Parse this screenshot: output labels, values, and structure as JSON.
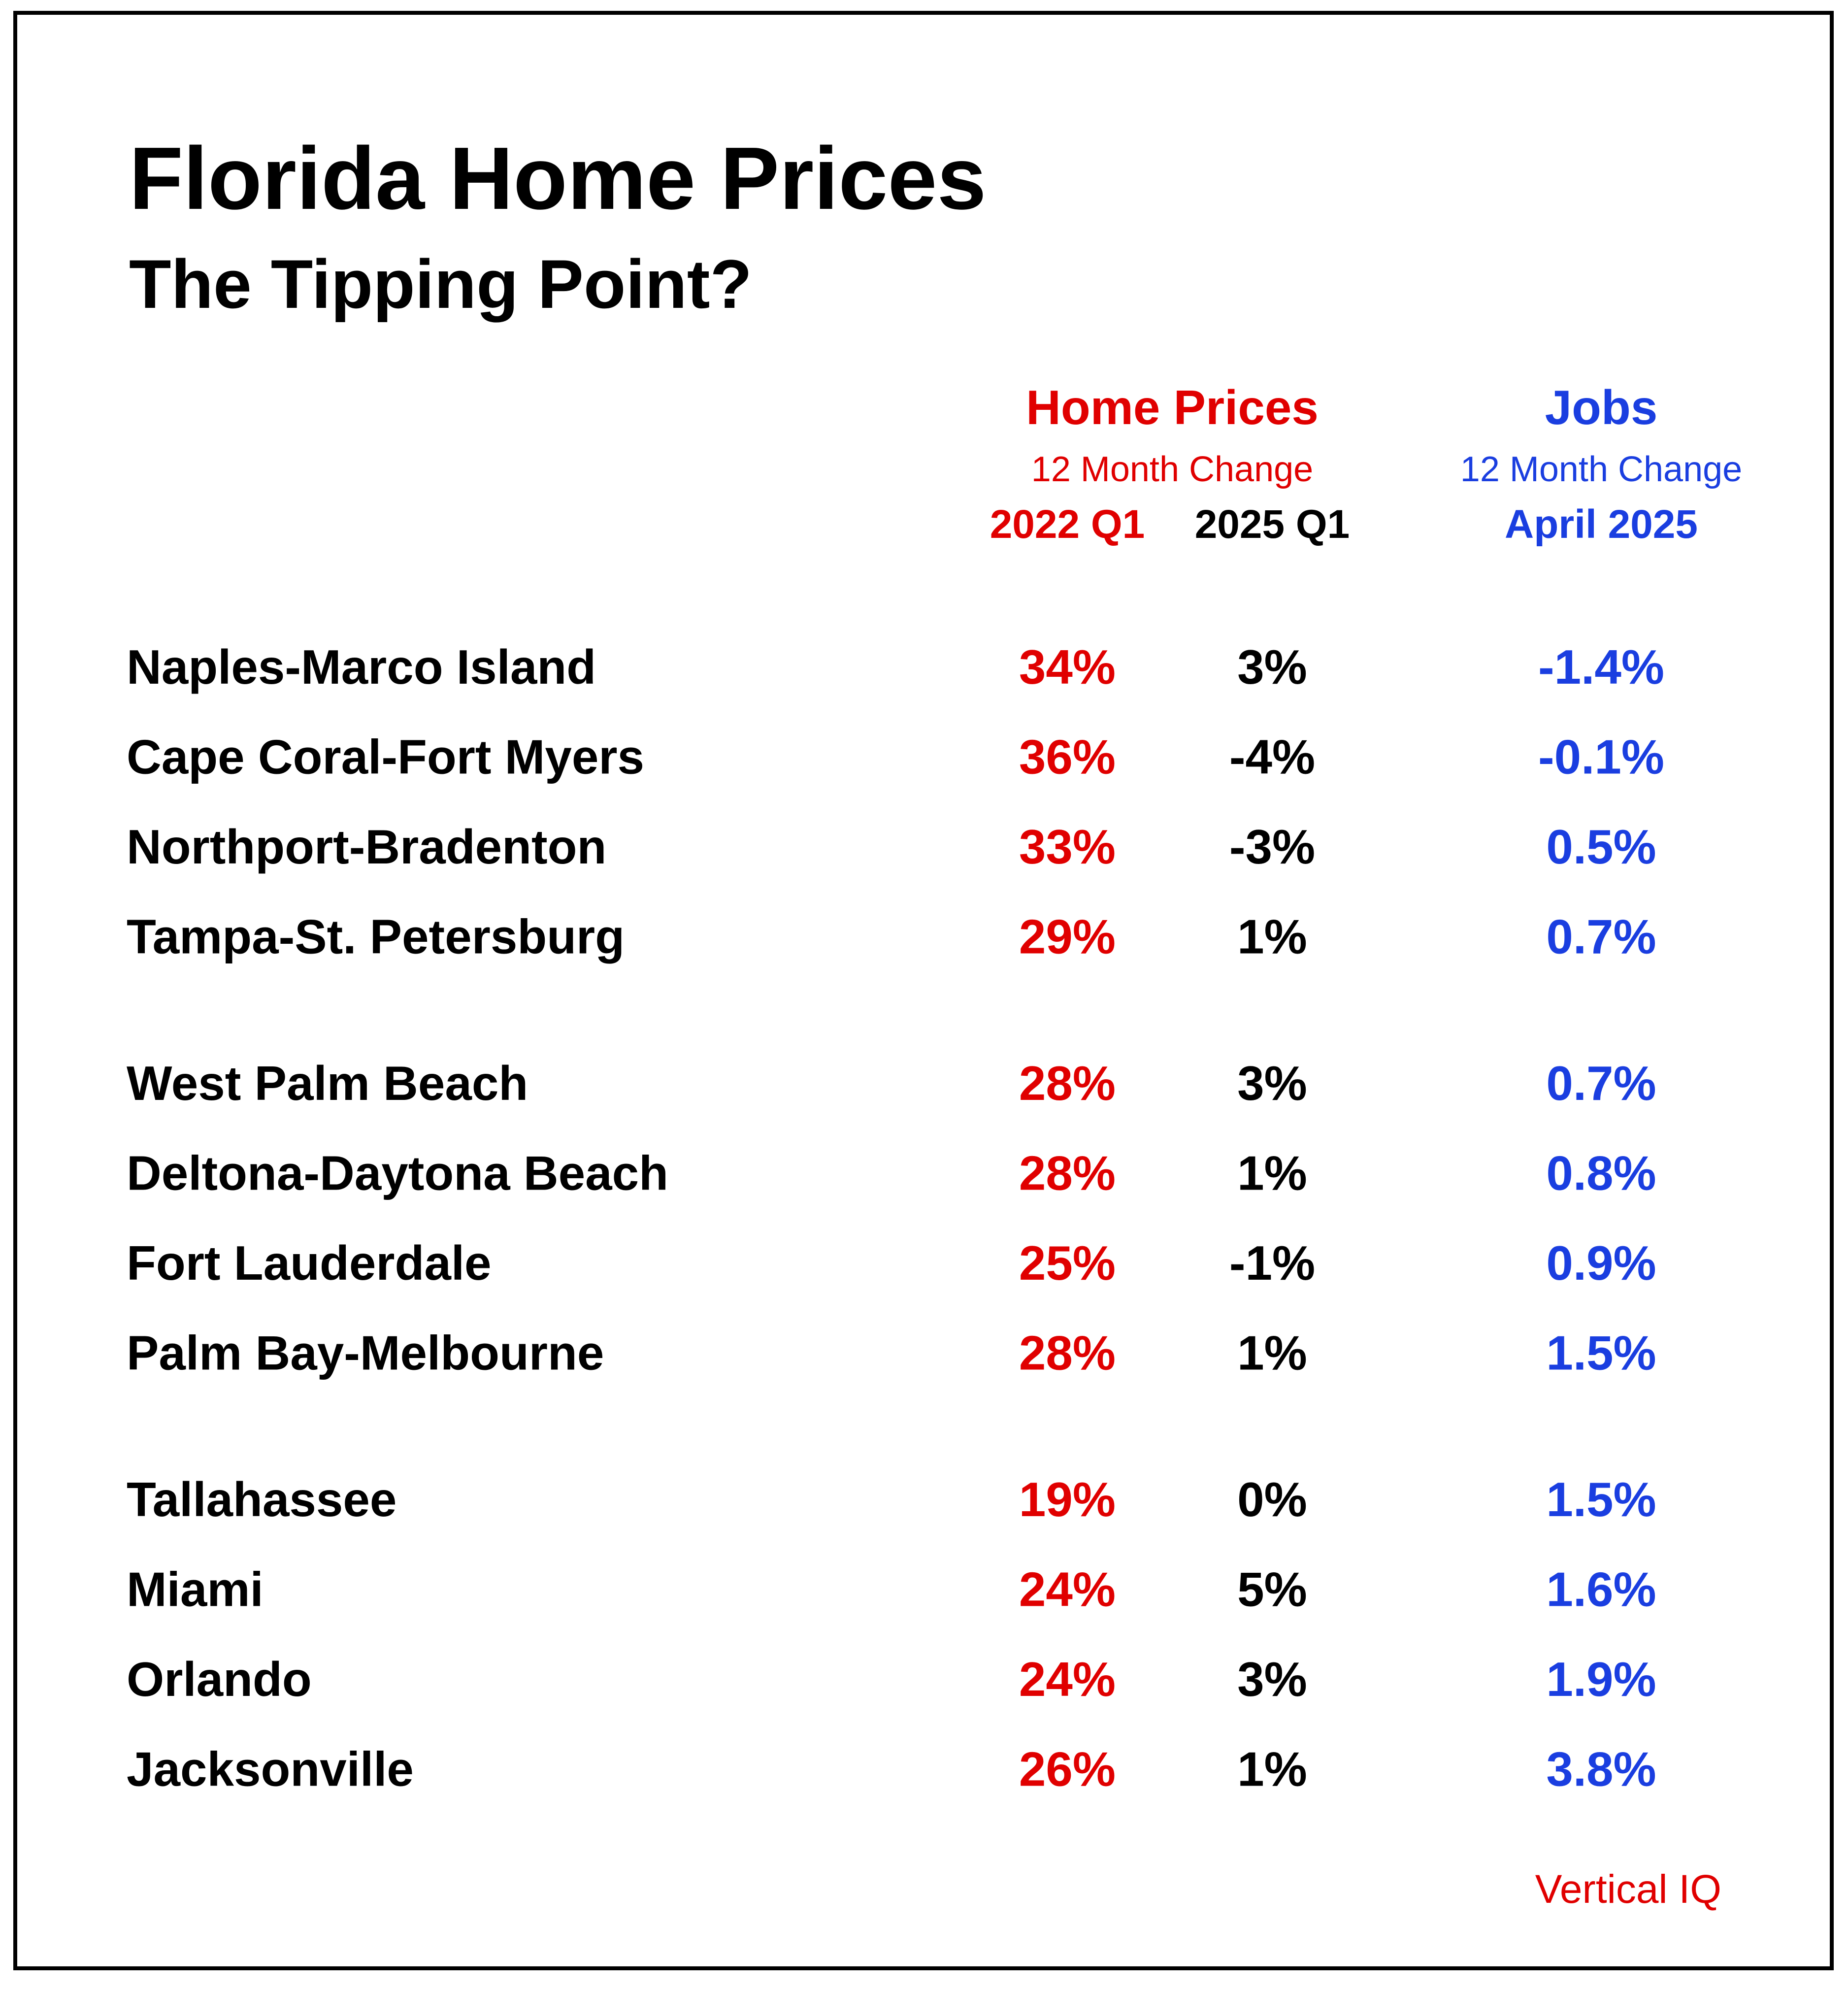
{
  "header": {
    "title": "Florida Home Prices",
    "subtitle": "The Tipping Point?"
  },
  "columns": {
    "home_prices": {
      "title": "Home Prices",
      "subtitle": "12 Month Change",
      "periods": [
        "2022 Q1",
        "2025 Q1"
      ]
    },
    "jobs": {
      "title": "Jobs",
      "subtitle": "12 Month Change",
      "period": "April 2025"
    }
  },
  "table": {
    "groups": [
      {
        "rows": [
          [
            "Naples-Marco Island",
            "34%",
            "3%",
            "-1.4%"
          ],
          [
            "Cape Coral-Fort Myers",
            "36%",
            "-4%",
            "-0.1%"
          ],
          [
            "Northport-Bradenton",
            "33%",
            "-3%",
            "0.5%"
          ],
          [
            "Tampa-St. Petersburg",
            "29%",
            "1%",
            "0.7%"
          ]
        ]
      },
      {
        "rows": [
          [
            "West Palm Beach",
            "28%",
            "3%",
            "0.7%"
          ],
          [
            "Deltona-Daytona Beach",
            "28%",
            "1%",
            "0.8%"
          ],
          [
            "Fort Lauderdale",
            "25%",
            "-1%",
            "0.9%"
          ],
          [
            "Palm Bay-Melbourne",
            "28%",
            "1%",
            "1.5%"
          ]
        ]
      },
      {
        "rows": [
          [
            "Tallahassee",
            "19%",
            "0%",
            "1.5%"
          ],
          [
            "Miami",
            "24%",
            "5%",
            "1.6%"
          ],
          [
            "Orlando",
            "24%",
            "3%",
            "1.9%"
          ],
          [
            "Jacksonville",
            "26%",
            "1%",
            "3.8%"
          ]
        ]
      }
    ]
  },
  "source": "Vertical IQ"
}
